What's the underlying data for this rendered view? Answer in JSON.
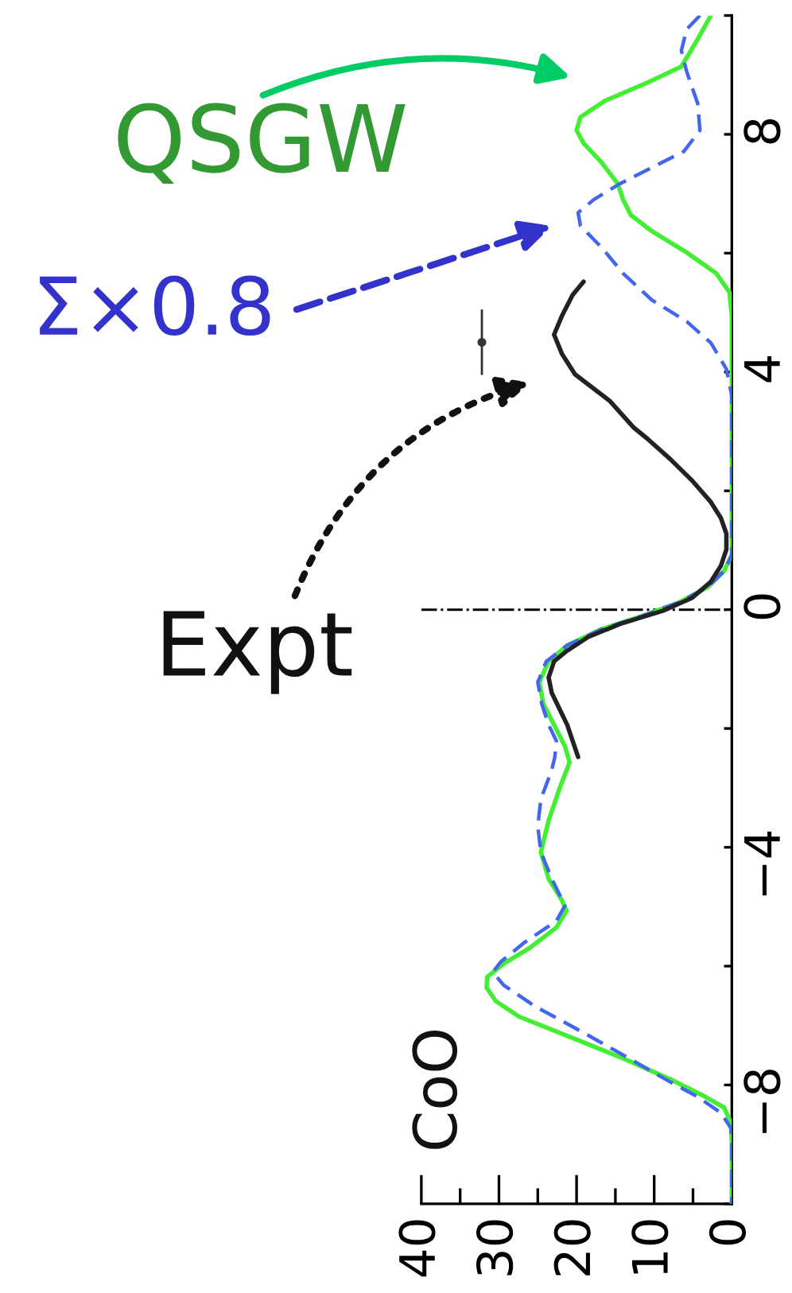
{
  "chart_data": {
    "type": "line",
    "xlim": [
      40,
      0
    ],
    "xticks": [
      40,
      {
        "value": 35,
        "label": null
      },
      30,
      {
        "value": 25,
        "label": null
      },
      20,
      {
        "value": 15,
        "label": null
      },
      10,
      {
        "value": 5,
        "label": null
      },
      0
    ],
    "ylim": [
      -10,
      10
    ],
    "yticks": [
      {
        "value": -10,
        "label": null
      },
      {
        "value": -8,
        "label": "−8"
      },
      {
        "value": -6,
        "label": null
      },
      {
        "value": -4,
        "label": "−4"
      },
      {
        "value": -2,
        "label": null
      },
      0,
      {
        "value": 2,
        "label": null
      },
      4,
      {
        "value": 6,
        "label": null
      },
      8,
      {
        "value": 10,
        "label": null
      }
    ],
    "ref_lines": [
      {
        "axis": "y",
        "value": 0,
        "color": "#000000",
        "line_style": "dashdot"
      }
    ],
    "series": [
      {
        "name": "QSGW",
        "color": "#44ee33",
        "line_style": "solid",
        "x": [
          2.7,
          4.4,
          6.5,
          10.9,
          16.4,
          19.5,
          20.0,
          19.1,
          16.8,
          14.7,
          14.0,
          13.0,
          10.3,
          5.8,
          2.0,
          0.3,
          0,
          0,
          1.0,
          3.1,
          6.8,
          11.6,
          16.8,
          21.2,
          23.6,
          24.8,
          24.3,
          22.9,
          21.5,
          20.9,
          22.2,
          23.6,
          24.6,
          23.6,
          21.9,
          21.3,
          22.6,
          26.0,
          29.4,
          31.5,
          31.6,
          30.4,
          27.4,
          20.5,
          13.7,
          7.5,
          3.4,
          1.0,
          0.1,
          0,
          0
        ],
        "values": [
          10.0,
          9.6,
          9.14,
          8.87,
          8.56,
          8.29,
          8.07,
          7.85,
          7.53,
          7.17,
          6.9,
          6.64,
          6.37,
          6.01,
          5.66,
          5.34,
          4.94,
          0.92,
          0.65,
          0.38,
          0.12,
          -0.11,
          -0.33,
          -0.6,
          -0.87,
          -1.22,
          -1.58,
          -1.94,
          -2.3,
          -2.57,
          -3.01,
          -3.55,
          -4.08,
          -4.53,
          -4.89,
          -5.07,
          -5.35,
          -5.69,
          -5.96,
          -6.18,
          -6.36,
          -6.59,
          -6.85,
          -7.21,
          -7.57,
          -7.93,
          -8.2,
          -8.38,
          -8.64,
          -9.0,
          -10.0
        ]
      },
      {
        "name": "Σ×0.8",
        "color": "#4466ee",
        "line_style": "dashed",
        "x": [
          4.1,
          5.8,
          6.5,
          5.8,
          4.4,
          4.1,
          6.2,
          10.3,
          14.4,
          17.8,
          19.8,
          19.5,
          16.8,
          14.0,
          10.3,
          5.8,
          2.7,
          0.7,
          0,
          0,
          1.0,
          3.1,
          6.8,
          11.6,
          16.8,
          21.2,
          23.9,
          25.0,
          24.5,
          23.6,
          22.6,
          22.8,
          23.2,
          24.6,
          25.0,
          24.6,
          23.2,
          21.5,
          22.6,
          26.7,
          29.7,
          30.8,
          29.4,
          25.3,
          19.1,
          13.0,
          8.2,
          4.4,
          1.4,
          0.1,
          0,
          0
        ],
        "values": [
          10.0,
          9.77,
          9.41,
          9.05,
          8.52,
          8.07,
          7.71,
          7.44,
          7.17,
          6.9,
          6.68,
          6.46,
          6.1,
          5.66,
          5.21,
          4.85,
          4.49,
          4.05,
          3.6,
          0.92,
          0.65,
          0.38,
          0.12,
          -0.11,
          -0.33,
          -0.6,
          -0.87,
          -1.22,
          -1.58,
          -1.94,
          -2.21,
          -2.48,
          -2.7,
          -3.19,
          -3.64,
          -4.08,
          -4.53,
          -4.98,
          -5.24,
          -5.6,
          -5.92,
          -6.1,
          -6.32,
          -6.68,
          -7.12,
          -7.57,
          -7.93,
          -8.2,
          -8.47,
          -8.73,
          -9.0,
          -10.0
        ]
      },
      {
        "name": "Expt",
        "color": "#222222",
        "line_style": "solid",
        "x": [
          19.1,
          20.5,
          21.9,
          22.9,
          21.9,
          20.2,
          15.7,
          12.6,
          10.9,
          7.9,
          5.1,
          2.7,
          1.4,
          0.7,
          0.7,
          1.4,
          2.7,
          5.1,
          8.9,
          14.4,
          18.5,
          21.2,
          22.9,
          23.6,
          23.2,
          22.2,
          21.2,
          20.5,
          19.8
        ],
        "values": [
          5.52,
          5.3,
          4.94,
          4.63,
          4.31,
          3.96,
          3.51,
          3.06,
          2.88,
          2.53,
          2.17,
          1.81,
          1.54,
          1.28,
          1.01,
          0.74,
          0.47,
          0.2,
          -0.02,
          -0.24,
          -0.46,
          -0.69,
          -0.87,
          -1.14,
          -1.4,
          -1.67,
          -1.94,
          -2.21,
          -2.48
        ]
      },
      {
        "type": "scatter",
        "color": "#333333",
        "marker": "circle",
        "x": [
          32.2
        ],
        "values": [
          4.5
        ],
        "errors": [
          0.55
        ]
      }
    ],
    "annotations": [
      "CoO"
    ]
  }
}
